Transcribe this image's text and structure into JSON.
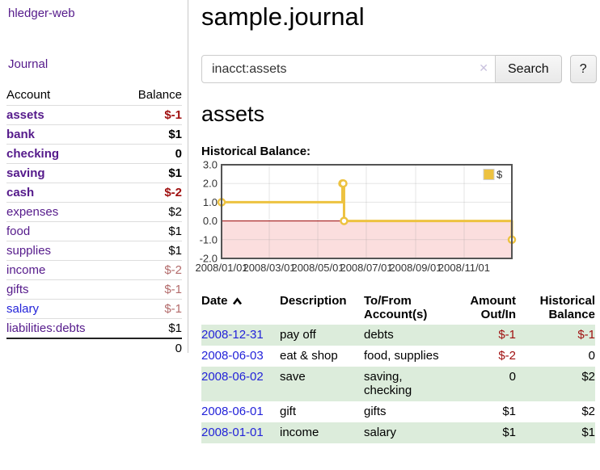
{
  "colors": {
    "link_purple": "#551a8b",
    "link_blue": "#2323d9",
    "negative": "#a01010",
    "negative_muted": "#b36b6b",
    "row_stripe": "#dcecdb"
  },
  "app": {
    "brand": "hledger-web",
    "nav": {
      "journal": "Journal"
    }
  },
  "sidebar": {
    "table_headers": {
      "account": "Account",
      "balance": "Balance"
    },
    "accounts": [
      {
        "name": "assets",
        "balance": "$-1",
        "level": 1,
        "bold": true,
        "value_style": "negative",
        "link_color": "purple"
      },
      {
        "name": "bank",
        "balance": "$1",
        "level": 2,
        "bold": true,
        "value_style": "normal",
        "link_color": "purple"
      },
      {
        "name": "checking",
        "balance": "0",
        "level": 3,
        "bold": true,
        "value_style": "normal",
        "link_color": "purple"
      },
      {
        "name": "saving",
        "balance": "$1",
        "level": 3,
        "bold": true,
        "value_style": "normal",
        "link_color": "purple"
      },
      {
        "name": "cash",
        "balance": "$-2",
        "level": 2,
        "bold": true,
        "value_style": "negative",
        "link_color": "purple"
      },
      {
        "name": "expenses",
        "balance": "$2",
        "level": 1,
        "bold": false,
        "value_style": "normal",
        "link_color": "purple"
      },
      {
        "name": "food",
        "balance": "$1",
        "level": 2,
        "bold": false,
        "value_style": "normal",
        "link_color": "purple"
      },
      {
        "name": "supplies",
        "balance": "$1",
        "level": 2,
        "bold": false,
        "value_style": "normal",
        "link_color": "purple"
      },
      {
        "name": "income",
        "balance": "$-2",
        "level": 1,
        "bold": false,
        "value_style": "negative-muted",
        "link_color": "purple"
      },
      {
        "name": "gifts",
        "balance": "$-1",
        "level": 2,
        "bold": false,
        "value_style": "negative-muted",
        "link_color": "purple"
      },
      {
        "name": "salary",
        "balance": "$-1",
        "level": 2,
        "bold": false,
        "value_style": "negative-muted",
        "link_color": "blue"
      },
      {
        "name": "liabilities:debts",
        "balance": "$1",
        "level": 1,
        "bold": false,
        "value_style": "normal",
        "link_color": "purple"
      }
    ],
    "total": "0"
  },
  "main": {
    "title": "sample.journal",
    "search": {
      "value": "inacct:assets",
      "clear_icon": "✕",
      "search_button": "Search",
      "help_button": "?"
    },
    "account_heading": "assets",
    "chart_title": "Historical Balance:"
  },
  "chart_data": {
    "type": "line",
    "mode": "steps",
    "title": "Historical Balance",
    "series": [
      {
        "name": "$",
        "points": [
          [
            "2008-01-01",
            1
          ],
          [
            "2008-06-01",
            2
          ],
          [
            "2008-06-02",
            2
          ],
          [
            "2008-06-03",
            0
          ],
          [
            "2008-12-31",
            -1
          ]
        ]
      }
    ],
    "xrange": [
      "2008-01-01",
      "2008-12-31"
    ],
    "ylim": [
      -2,
      3
    ],
    "yticks": [
      {
        "v": 3,
        "label": "3.0"
      },
      {
        "v": 2,
        "label": "2.0"
      },
      {
        "v": 1,
        "label": "1.0"
      },
      {
        "v": 0,
        "label": "0.0"
      },
      {
        "v": -1,
        "label": "-1.0"
      },
      {
        "v": -2,
        "label": "-2.0"
      }
    ],
    "xticks": [
      {
        "date": "2008-01-01",
        "label": "2008/01/01"
      },
      {
        "date": "2008-03-01",
        "label": "2008/03/01"
      },
      {
        "date": "2008-05-01",
        "label": "2008/05/01"
      },
      {
        "date": "2008-07-01",
        "label": "2008/07/01"
      },
      {
        "date": "2008-09-01",
        "label": "2008/09/01"
      },
      {
        "date": "2008-11-01",
        "label": "2008/11/01"
      }
    ],
    "legend_position": "top-right",
    "grid": true,
    "colors": {
      "series": "#edc240",
      "marker_fill": "#ffffff",
      "negative_region": "#fbdede",
      "zero_line": "#990000",
      "border": "#545454",
      "grid": "#999999",
      "legend_box_border": "#cfcfcf"
    }
  },
  "register": {
    "headers": {
      "date": "Date",
      "description": "Description",
      "tofrom": "To/From\nAccount(s)",
      "amount": "Amount\nOut/In",
      "balance": "Historical\nBalance"
    },
    "rows": [
      {
        "date": "2008-12-31",
        "description": "pay off",
        "accounts": "debts",
        "amount": "$-1",
        "amount_negative": true,
        "balance": "$-1",
        "balance_negative": true
      },
      {
        "date": "2008-06-03",
        "description": "eat & shop",
        "accounts": "food, supplies",
        "amount": "$-2",
        "amount_negative": true,
        "balance": "0",
        "balance_negative": false
      },
      {
        "date": "2008-06-02",
        "description": "save",
        "accounts": "saving, checking",
        "amount": "0",
        "amount_negative": false,
        "balance": "$2",
        "balance_negative": false
      },
      {
        "date": "2008-06-01",
        "description": "gift",
        "accounts": "gifts",
        "amount": "$1",
        "amount_negative": false,
        "balance": "$2",
        "balance_negative": false
      },
      {
        "date": "2008-01-01",
        "description": "income",
        "accounts": "salary",
        "amount": "$1",
        "amount_negative": false,
        "balance": "$1",
        "balance_negative": false
      }
    ]
  }
}
